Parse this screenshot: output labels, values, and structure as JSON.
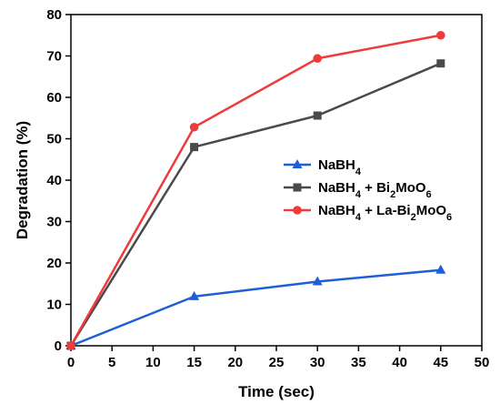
{
  "chart_data": {
    "type": "line",
    "xlabel": "Time (sec)",
    "ylabel": "Degradation (%)",
    "xlim": [
      0,
      50
    ],
    "ylim": [
      0,
      80
    ],
    "xticks": [
      0,
      5,
      10,
      15,
      20,
      25,
      30,
      35,
      40,
      45,
      50
    ],
    "yticks": [
      0,
      10,
      20,
      30,
      40,
      50,
      60,
      70,
      80
    ],
    "grid": false,
    "legend_position": "center-right",
    "series": [
      {
        "name": "NaBH4",
        "legend_parts": [
          [
            "NaBH",
            ""
          ],
          [
            "4",
            "sub"
          ]
        ],
        "color": "#1f5fd6",
        "marker": "triangle",
        "x": [
          0,
          15,
          30,
          45
        ],
        "y": [
          0,
          11.9,
          15.5,
          18.3
        ]
      },
      {
        "name": "NaBH4 + Bi2MoO6",
        "legend_parts": [
          [
            "NaBH",
            ""
          ],
          [
            "4",
            "sub"
          ],
          [
            " + Bi",
            ""
          ],
          [
            "2",
            "sub"
          ],
          [
            "MoO",
            ""
          ],
          [
            "6",
            "sub"
          ]
        ],
        "color": "#4a4a4a",
        "marker": "square",
        "x": [
          0,
          15,
          30,
          45
        ],
        "y": [
          0,
          48.0,
          55.6,
          68.2
        ]
      },
      {
        "name": "NaBH4 + La-Bi2MoO6",
        "legend_parts": [
          [
            "NaBH",
            ""
          ],
          [
            "4",
            "sub"
          ],
          [
            " + La-Bi",
            ""
          ],
          [
            "2",
            "sub"
          ],
          [
            "MoO",
            ""
          ],
          [
            "6",
            "sub"
          ]
        ],
        "color": "#ee3b3b",
        "marker": "circle",
        "x": [
          0,
          15,
          30,
          45
        ],
        "y": [
          0,
          52.8,
          69.4,
          75.0
        ]
      }
    ]
  }
}
